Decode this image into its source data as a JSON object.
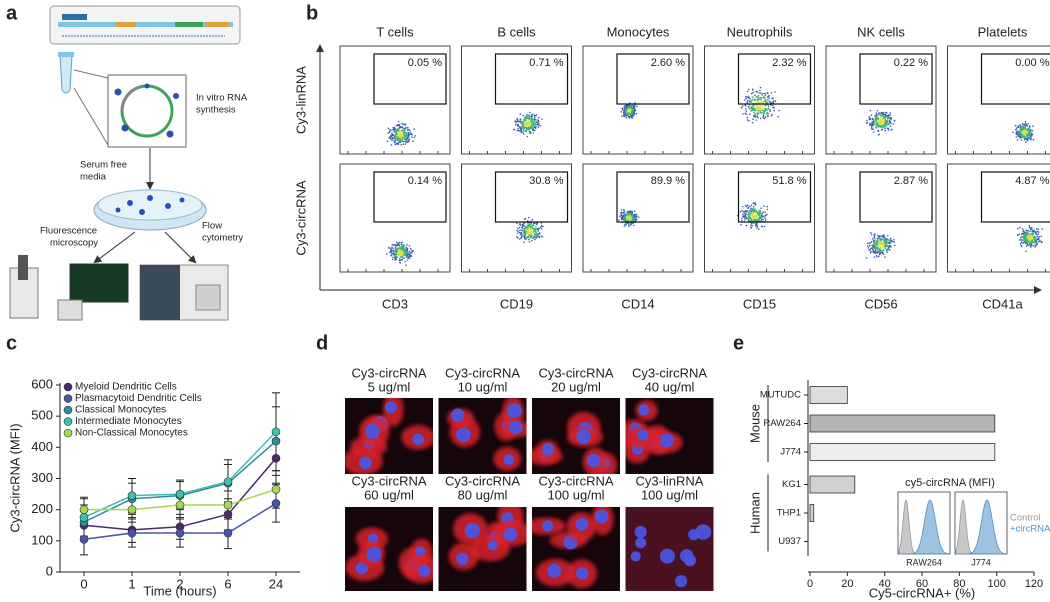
{
  "panel_labels": [
    "a",
    "b",
    "c",
    "d",
    "e"
  ],
  "schematic": {
    "synthesis": [
      "In vitro RNA",
      "synthesis"
    ],
    "media": [
      "Serum free",
      "media"
    ],
    "microscopy": [
      "Fluorescence",
      "microscopy"
    ],
    "cytometry": [
      "Flow",
      "cytometry"
    ]
  },
  "flow": {
    "populations": [
      "T cells",
      "B cells",
      "Monocytes",
      "Neutrophils",
      "NK cells",
      "Platelets"
    ],
    "markers": [
      "CD3",
      "CD19",
      "CD14",
      "CD15",
      "CD56",
      "CD41a"
    ],
    "rows": [
      "Cy3-linRNA",
      "Cy3-circRNA"
    ],
    "gates": [
      [
        "0.05 %",
        "0.71 %",
        "2.60 %",
        "2.32 %",
        "0.22 %",
        "0.00 %"
      ],
      [
        "0.14 %",
        "30.8 %",
        "89.9 %",
        "51.8 %",
        "2.87 %",
        "4.87 %"
      ]
    ]
  },
  "microscopy": {
    "captions": [
      [
        "Cy3-circRNA",
        "5 ug/ml"
      ],
      [
        "Cy3-circRNA",
        "10 ug/ml"
      ],
      [
        "Cy3-circRNA",
        "20 ug/ml"
      ],
      [
        "Cy3-circRNA",
        "40 ug/ml"
      ],
      [
        "Cy3-circRNA",
        "60 ug/ml"
      ],
      [
        "Cy3-circRNA",
        "80 ug/ml"
      ],
      [
        "Cy3-circRNA",
        "100 ug/ml"
      ],
      [
        "Cy3-linRNA",
        "100 ug/ml"
      ]
    ]
  },
  "chart_data": [
    {
      "type": "line",
      "x_label": "Time (hours)",
      "y_label": "Cy3-circRNA (MFI)",
      "categories": [
        "0",
        "1",
        "2",
        "6",
        "24"
      ],
      "ylim": [
        0,
        600
      ],
      "yticks": [
        0,
        100,
        200,
        300,
        400,
        500,
        600
      ],
      "series": [
        {
          "name": "Myeloid Dendritic Cells",
          "color": "#4b2a6e",
          "values": [
            150,
            135,
            145,
            185,
            365
          ],
          "errors": [
            45,
            40,
            40,
            50,
            80
          ]
        },
        {
          "name": "Plasmacytoid Dendritic Cells",
          "color": "#4a55a8",
          "values": [
            105,
            125,
            125,
            125,
            220
          ],
          "errors": [
            50,
            45,
            45,
            50,
            60
          ]
        },
        {
          "name": "Classical Monocytes",
          "color": "#2a8e9e",
          "values": [
            160,
            235,
            245,
            285,
            420
          ],
          "errors": [
            55,
            50,
            45,
            60,
            110
          ]
        },
        {
          "name": "Intermediate Monocytes",
          "color": "#3cc0b0",
          "values": [
            175,
            245,
            250,
            290,
            450
          ],
          "errors": [
            60,
            55,
            45,
            70,
            125
          ]
        },
        {
          "name": "Non-Classical Monocytes",
          "color": "#a8d84e",
          "values": [
            200,
            200,
            215,
            215,
            265
          ],
          "errors": [
            40,
            40,
            40,
            45,
            60
          ]
        }
      ]
    },
    {
      "type": "bar",
      "orientation": "horizontal",
      "x_label": "Cy5-circRNA+ (%)",
      "xlim": [
        0,
        120
      ],
      "xticks": [
        0,
        20,
        40,
        60,
        80,
        100,
        120
      ],
      "groups": [
        {
          "name": "Mouse",
          "categories": [
            "MUTUDC",
            "RAW264",
            "J774"
          ],
          "values": [
            20,
            99,
            99
          ],
          "colors": [
            "#dcdcdc",
            "#b4b4b4",
            "#eeeeee"
          ]
        },
        {
          "name": "Human",
          "categories": [
            "KG1",
            "THP1",
            "U937"
          ],
          "values": [
            24,
            2,
            0
          ],
          "colors": [
            "#d0d0d0",
            "#d0d0d0",
            "#d0d0d0"
          ]
        }
      ],
      "inset": {
        "title": "cy5-circRNA (MFI)",
        "samples": [
          "RAW264",
          "J774"
        ],
        "legend": [
          {
            "name": "Control",
            "color": "#9a9a9a"
          },
          {
            "name": "+circRNA",
            "color": "#4f8fc8"
          }
        ]
      }
    }
  ]
}
